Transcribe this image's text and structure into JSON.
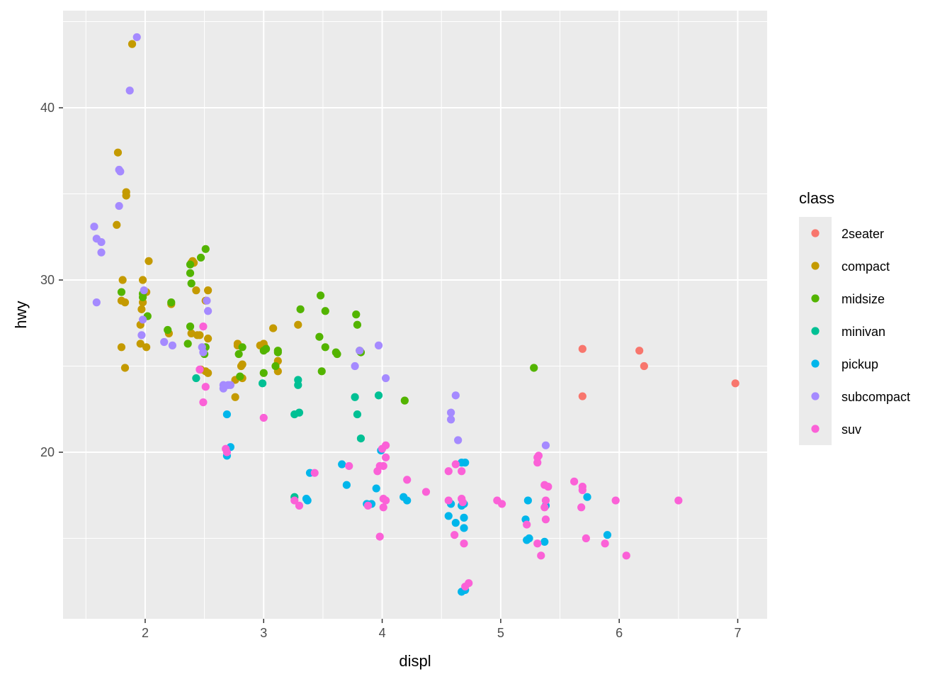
{
  "chart_data": {
    "type": "scatter",
    "title": "",
    "xlabel": "displ",
    "ylabel": "hwy",
    "xlim": [
      1.307,
      7.248
    ],
    "ylim": [
      10.33,
      45.64
    ],
    "xticks": [
      2,
      3,
      4,
      5,
      6,
      7
    ],
    "yticks": [
      20,
      30,
      40
    ],
    "grid": true,
    "legend": {
      "title": "class",
      "placement": "right"
    },
    "series": [
      {
        "name": "2seater",
        "color": "#F8766D",
        "points": [
          [
            5.69,
            26.0
          ],
          [
            6.17,
            25.9
          ],
          [
            6.21,
            25.0
          ],
          [
            5.69,
            23.25
          ],
          [
            6.98,
            24.0
          ]
        ]
      },
      {
        "name": "compact",
        "color": "#C49A00",
        "points": [
          [
            1.89,
            43.7
          ],
          [
            1.77,
            37.4
          ],
          [
            1.84,
            35.1
          ],
          [
            1.84,
            34.9
          ],
          [
            1.76,
            33.2
          ],
          [
            1.81,
            30.0
          ],
          [
            1.98,
            30.0
          ],
          [
            2.03,
            31.1
          ],
          [
            1.8,
            28.8
          ],
          [
            1.83,
            28.7
          ],
          [
            2.01,
            29.3
          ],
          [
            1.97,
            28.3
          ],
          [
            1.98,
            28.7
          ],
          [
            1.96,
            27.4
          ],
          [
            1.8,
            26.1
          ],
          [
            1.96,
            26.3
          ],
          [
            2.01,
            26.1
          ],
          [
            1.83,
            24.9
          ],
          [
            2.22,
            28.6
          ],
          [
            2.2,
            26.9
          ],
          [
            2.39,
            31.0
          ],
          [
            2.4,
            31.1
          ],
          [
            2.41,
            31.0
          ],
          [
            2.43,
            29.4
          ],
          [
            2.39,
            26.9
          ],
          [
            2.44,
            26.8
          ],
          [
            2.46,
            26.8
          ],
          [
            2.53,
            29.4
          ],
          [
            2.51,
            28.8
          ],
          [
            2.53,
            26.6
          ],
          [
            2.47,
            24.8
          ],
          [
            2.51,
            24.7
          ],
          [
            2.53,
            24.6
          ],
          [
            2.78,
            26.3
          ],
          [
            2.78,
            26.2
          ],
          [
            2.81,
            25.0
          ],
          [
            2.82,
            25.1
          ],
          [
            2.76,
            24.2
          ],
          [
            2.82,
            24.3
          ],
          [
            2.76,
            23.2
          ],
          [
            2.97,
            26.2
          ],
          [
            3.0,
            26.3
          ],
          [
            3.01,
            26.1
          ],
          [
            3.08,
            27.2
          ],
          [
            3.12,
            25.3
          ],
          [
            3.12,
            24.7
          ],
          [
            3.29,
            27.4
          ]
        ]
      },
      {
        "name": "midsize",
        "color": "#53B400",
        "points": [
          [
            2.51,
            31.8
          ],
          [
            2.47,
            31.3
          ],
          [
            2.38,
            30.9
          ],
          [
            2.38,
            30.4
          ],
          [
            2.39,
            29.8
          ],
          [
            1.8,
            29.3
          ],
          [
            1.98,
            29.2
          ],
          [
            1.98,
            29.0
          ],
          [
            2.02,
            27.9
          ],
          [
            2.22,
            28.7
          ],
          [
            2.19,
            27.1
          ],
          [
            2.36,
            26.3
          ],
          [
            2.38,
            27.3
          ],
          [
            2.51,
            26.1
          ],
          [
            2.5,
            25.7
          ],
          [
            2.79,
            25.7
          ],
          [
            2.82,
            26.1
          ],
          [
            2.8,
            24.4
          ],
          [
            3.0,
            25.9
          ],
          [
            3.02,
            26.0
          ],
          [
            3.0,
            24.6
          ],
          [
            3.1,
            25.0
          ],
          [
            3.12,
            25.9
          ],
          [
            3.12,
            25.8
          ],
          [
            3.31,
            28.3
          ],
          [
            3.48,
            29.1
          ],
          [
            3.52,
            28.2
          ],
          [
            3.47,
            26.7
          ],
          [
            3.52,
            26.1
          ],
          [
            3.61,
            25.8
          ],
          [
            3.62,
            25.7
          ],
          [
            3.49,
            24.7
          ],
          [
            3.78,
            28.0
          ],
          [
            3.79,
            27.4
          ],
          [
            3.81,
            25.9
          ],
          [
            3.82,
            25.8
          ],
          [
            4.19,
            23.0
          ],
          [
            5.28,
            24.9
          ]
        ]
      },
      {
        "name": "minivan",
        "color": "#00C094",
        "points": [
          [
            2.43,
            24.3
          ],
          [
            2.99,
            24.0
          ],
          [
            3.29,
            24.2
          ],
          [
            3.29,
            23.9
          ],
          [
            3.26,
            22.2
          ],
          [
            3.3,
            22.3
          ],
          [
            3.26,
            17.4
          ],
          [
            3.77,
            23.2
          ],
          [
            3.97,
            23.3
          ],
          [
            3.79,
            22.2
          ],
          [
            3.82,
            20.8
          ]
        ]
      },
      {
        "name": "pickup",
        "color": "#00B6EB",
        "points": [
          [
            2.69,
            22.2
          ],
          [
            2.72,
            20.3
          ],
          [
            2.69,
            19.8
          ],
          [
            3.39,
            18.8
          ],
          [
            3.37,
            17.2
          ],
          [
            3.36,
            17.3
          ],
          [
            3.66,
            19.3
          ],
          [
            3.7,
            18.1
          ],
          [
            3.87,
            17.0
          ],
          [
            3.91,
            17.0
          ],
          [
            3.95,
            17.9
          ],
          [
            3.99,
            20.1
          ],
          [
            4.18,
            17.4
          ],
          [
            4.21,
            17.2
          ],
          [
            4.58,
            17.0
          ],
          [
            4.56,
            16.3
          ],
          [
            4.62,
            15.9
          ],
          [
            4.67,
            16.9
          ],
          [
            4.69,
            17.0
          ],
          [
            4.67,
            19.4
          ],
          [
            4.7,
            19.4
          ],
          [
            4.69,
            16.2
          ],
          [
            4.69,
            15.6
          ],
          [
            4.67,
            11.9
          ],
          [
            4.7,
            12.0
          ],
          [
            5.21,
            16.1
          ],
          [
            5.22,
            14.9
          ],
          [
            5.24,
            15.0
          ],
          [
            5.23,
            17.2
          ],
          [
            5.37,
            14.8
          ],
          [
            5.38,
            16.9
          ],
          [
            5.73,
            17.4
          ],
          [
            5.9,
            15.2
          ]
        ]
      },
      {
        "name": "subcompact",
        "color": "#A58AFF",
        "points": [
          [
            1.93,
            44.1
          ],
          [
            1.87,
            41.0
          ],
          [
            1.78,
            36.4
          ],
          [
            1.79,
            36.3
          ],
          [
            1.78,
            34.3
          ],
          [
            1.57,
            33.1
          ],
          [
            1.59,
            32.4
          ],
          [
            1.63,
            32.2
          ],
          [
            1.63,
            31.6
          ],
          [
            1.59,
            28.7
          ],
          [
            1.99,
            29.4
          ],
          [
            2.52,
            28.8
          ],
          [
            2.53,
            28.2
          ],
          [
            1.98,
            27.7
          ],
          [
            1.97,
            26.8
          ],
          [
            2.16,
            26.4
          ],
          [
            2.23,
            26.2
          ],
          [
            2.48,
            26.1
          ],
          [
            2.49,
            25.8
          ],
          [
            2.66,
            23.9
          ],
          [
            2.7,
            23.9
          ],
          [
            2.72,
            23.9
          ],
          [
            2.66,
            23.7
          ],
          [
            3.81,
            25.9
          ],
          [
            3.77,
            25.0
          ],
          [
            3.97,
            26.2
          ],
          [
            4.03,
            24.3
          ],
          [
            4.62,
            23.3
          ],
          [
            4.58,
            22.3
          ],
          [
            4.58,
            21.9
          ],
          [
            4.64,
            20.7
          ],
          [
            5.38,
            20.4
          ]
        ]
      },
      {
        "name": "suv",
        "color": "#FB61D7",
        "points": [
          [
            2.49,
            27.3
          ],
          [
            2.46,
            24.8
          ],
          [
            2.51,
            23.8
          ],
          [
            2.49,
            22.9
          ],
          [
            3.0,
            22.0
          ],
          [
            2.68,
            20.2
          ],
          [
            2.69,
            20.0
          ],
          [
            3.43,
            18.8
          ],
          [
            3.26,
            17.2
          ],
          [
            3.3,
            16.9
          ],
          [
            3.72,
            19.2
          ],
          [
            3.88,
            16.9
          ],
          [
            3.96,
            18.9
          ],
          [
            3.98,
            19.2
          ],
          [
            4.01,
            19.2
          ],
          [
            4.0,
            20.2
          ],
          [
            4.03,
            20.4
          ],
          [
            4.03,
            19.7
          ],
          [
            4.01,
            17.3
          ],
          [
            4.03,
            17.2
          ],
          [
            4.01,
            16.8
          ],
          [
            3.98,
            15.1
          ],
          [
            4.21,
            18.4
          ],
          [
            4.37,
            17.7
          ],
          [
            4.56,
            18.9
          ],
          [
            4.62,
            19.3
          ],
          [
            4.67,
            18.9
          ],
          [
            4.56,
            17.2
          ],
          [
            4.67,
            17.3
          ],
          [
            4.68,
            17.1
          ],
          [
            4.61,
            15.2
          ],
          [
            4.69,
            14.7
          ],
          [
            4.7,
            12.2
          ],
          [
            4.73,
            12.4
          ],
          [
            4.97,
            17.2
          ],
          [
            5.01,
            17.0
          ],
          [
            5.31,
            19.7
          ],
          [
            5.32,
            19.8
          ],
          [
            5.31,
            19.4
          ],
          [
            5.22,
            15.8
          ],
          [
            5.31,
            14.7
          ],
          [
            5.34,
            14.0
          ],
          [
            5.37,
            18.1
          ],
          [
            5.4,
            18.0
          ],
          [
            5.38,
            17.2
          ],
          [
            5.38,
            16.1
          ],
          [
            5.37,
            16.8
          ],
          [
            5.62,
            18.3
          ],
          [
            5.69,
            18.0
          ],
          [
            5.69,
            17.8
          ],
          [
            5.68,
            16.8
          ],
          [
            5.72,
            15.0
          ],
          [
            5.97,
            17.2
          ],
          [
            5.88,
            14.7
          ],
          [
            6.06,
            14.0
          ],
          [
            6.5,
            17.2
          ]
        ]
      }
    ]
  }
}
